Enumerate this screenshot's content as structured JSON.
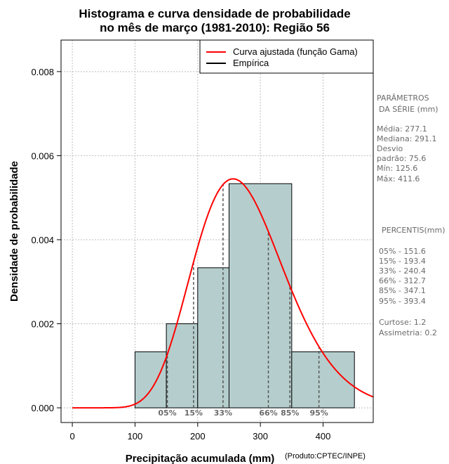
{
  "chart_data": {
    "type": "histogram",
    "title_line1": "Histograma e curva densidade de probabilidade",
    "title_line2": "no mês de março (1981-2010): Região 56",
    "xlabel": "Precipitação acumulada (mm)",
    "ylabel": "Densidade de probabilidade",
    "credit": "(Produto:CPTEC/INPE)",
    "xlim": [
      -18,
      480
    ],
    "ylim": [
      -0.00035,
      0.00875
    ],
    "x_ticks": [
      0,
      100,
      200,
      300,
      400
    ],
    "x_tick_labels": [
      "0",
      "100",
      "200",
      "300",
      "400"
    ],
    "y_ticks": [
      0,
      0.002,
      0.004,
      0.006,
      0.008
    ],
    "y_tick_labels": [
      "0.000",
      "0.002",
      "0.004",
      "0.006",
      "0.008"
    ],
    "bars": [
      {
        "x0": 100,
        "x1": 150,
        "density": 0.001333
      },
      {
        "x0": 150,
        "x1": 200,
        "density": 0.002
      },
      {
        "x0": 200,
        "x1": 250,
        "density": 0.003333
      },
      {
        "x0": 250,
        "x1": 350,
        "density": 0.005333
      },
      {
        "x0": 350,
        "x1": 450,
        "density": 0.001333
      }
    ],
    "gamma_fit": {
      "shape": 13.43,
      "scale": 20.63
    },
    "legend": [
      {
        "label": "Curva ajustada (função Gama)",
        "color": "#ff0000"
      },
      {
        "label": "Empírica",
        "color": "#000000"
      }
    ],
    "percentile_lines": [
      {
        "label": "05%",
        "value": 151.6
      },
      {
        "label": "15%",
        "value": 193.4
      },
      {
        "label": "33%",
        "value": 240.4
      },
      {
        "label": "66%",
        "value": 312.7
      },
      {
        "label": "85%",
        "value": 347.1
      },
      {
        "label": "95%",
        "value": 393.4
      }
    ],
    "colors": {
      "bar_fill": "#b5cecd",
      "curve": "#ff0000",
      "grid": "#bdbdbd",
      "percentile": "#555555"
    }
  },
  "side_panel": {
    "params_title_1": "PARÂMETROS",
    "params_title_2": "DA SÉRIE (mm)",
    "media": "Média:  277.1",
    "mediana": "Mediana:  291.1",
    "desvio_1": "Desvio",
    "desvio_2": "padrão:  75.6",
    "min": "Mín:  125.6",
    "max": "Máx:  411.6",
    "percentis_title": "PERCENTIS(mm)",
    "percentis": [
      "05% -  151.6",
      "15% -  193.4",
      "33% -  240.4",
      "66% -  312.7",
      "85% -  347.1",
      "95% -  393.4"
    ],
    "curtose": "Curtose:  1.2",
    "assimetria": "Assimetria:  0.2"
  }
}
